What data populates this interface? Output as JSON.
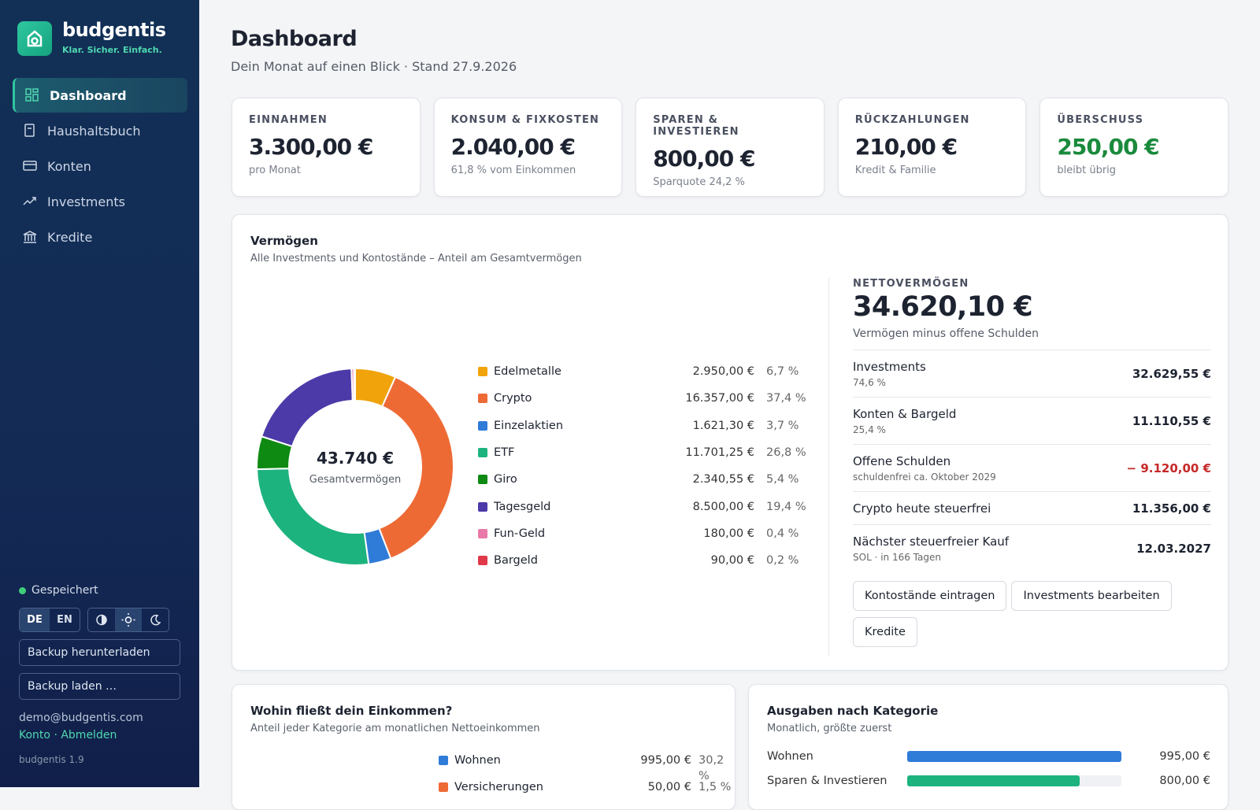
{
  "sidebar": {
    "brand": "budgentis",
    "tagline": "Klar. Sicher. Einfach.",
    "nav": [
      "Dashboard",
      "Haushaltsbuch",
      "Konten",
      "Investments",
      "Kredite"
    ],
    "status": "Gespeichert",
    "languages": [
      "DE",
      "EN"
    ],
    "buttons": [
      "Backup herunterladen",
      "Backup laden …"
    ],
    "email": "demo@budgentis.com",
    "account_links": [
      "Konto",
      "Abmelden"
    ],
    "separator": "·",
    "version": "budgentis 1.9"
  },
  "header": {
    "title": "Dashboard",
    "subtitle": "Dein Monat auf einen Blick · Stand 27.9.2026"
  },
  "kpis": [
    {
      "label": "EINNAHMEN",
      "value": "3.300,00 €",
      "note": "pro Monat"
    },
    {
      "label": "KONSUM & FIXKOSTEN",
      "value": "2.040,00 €",
      "note": "61,8 % vom Einkommen"
    },
    {
      "label": "SPAREN & INVESTIEREN",
      "value": "800,00 €",
      "note": "Sparquote 24,2 %"
    },
    {
      "label": "RÜCKZAHLUNGEN",
      "value": "210,00 €",
      "note": "Kredit & Familie"
    },
    {
      "label": "ÜBERSCHUSS",
      "value": "250,00 €",
      "note": "bleibt übrig",
      "color": "#1a8a3c"
    }
  ],
  "wealth": {
    "title": "Vermögen",
    "subtitle": "Alle Investments und Kontostände – Anteil am Gesamtvermögen",
    "total": "43.740 €",
    "total_label": "Gesamtvermögen",
    "items": [
      {
        "name": "Edelmetalle",
        "color": "#f0a30a",
        "amount": "2.950,00 €",
        "share": 6.7,
        "share_label": "6,7 %"
      },
      {
        "name": "Crypto",
        "color": "#ee6a35",
        "amount": "16.357,00 €",
        "share": 37.4,
        "share_label": "37,4 %"
      },
      {
        "name": "Einzelaktien",
        "color": "#2f7bd8",
        "amount": "1.621,30 €",
        "share": 3.7,
        "share_label": "3,7 %"
      },
      {
        "name": "ETF",
        "color": "#1db37e",
        "amount": "11.701,25 €",
        "share": 26.8,
        "share_label": "26,8 %"
      },
      {
        "name": "Giro",
        "color": "#0e8a12",
        "amount": "2.340,55 €",
        "share": 5.4,
        "share_label": "5,4 %"
      },
      {
        "name": "Tagesgeld",
        "color": "#4b3aa8",
        "amount": "8.500,00 €",
        "share": 19.4,
        "share_label": "19,4 %"
      },
      {
        "name": "Fun-Geld",
        "color": "#e879a8",
        "amount": "180,00 €",
        "share": 0.4,
        "share_label": "0,4 %"
      },
      {
        "name": "Bargeld",
        "color": "#e0394a",
        "amount": "90,00 €",
        "share": 0.2,
        "share_label": "0,2 %"
      }
    ],
    "net": {
      "label": "NETTOVERMÖGEN",
      "value": "34.620,10 €",
      "note": "Vermögen minus offene Schulden",
      "rows": [
        {
          "label": "Investments",
          "note": "74,6 %",
          "value": "32.629,55 €"
        },
        {
          "label": "Konten & Bargeld",
          "note": "25,4 %",
          "value": "11.110,55 €"
        },
        {
          "label": "Offene Schulden",
          "note": "schuldenfrei ca. Oktober 2029",
          "value": "− 9.120,00 €",
          "color": "#c62828"
        },
        {
          "label": "Crypto heute steuerfrei",
          "value": "11.356,00 €"
        },
        {
          "label": "Nächster steuerfreier Kauf",
          "note": "SOL · in 166 Tagen",
          "value": "12.03.2027"
        }
      ],
      "buttons": [
        "Kontostände eintragen",
        "Investments bearbeiten",
        "Kredite"
      ]
    }
  },
  "income": {
    "title": "Wohin fließt dein Einkommen?",
    "subtitle": "Anteil jeder Kategorie am monatlichen Nettoeinkommen",
    "items": [
      {
        "name": "Wohnen",
        "color": "#2f7bd8",
        "amount": "995,00 €",
        "share": 30.2,
        "share_label": "30,2 %"
      },
      {
        "name": "Versicherungen",
        "color": "#ee6a35",
        "amount": "50,00 €",
        "share": 1.5,
        "share_label": "1,5 %"
      }
    ]
  },
  "expenses": {
    "title": "Ausgaben nach Kategorie",
    "subtitle": "Monatlich, größte zuerst",
    "items": [
      {
        "name": "Wohnen",
        "value": 995,
        "value_label": "995,00 €",
        "color": "#2f7bd8"
      },
      {
        "name": "Sparen & Investieren",
        "value": 800,
        "value_label": "800,00 €",
        "color": "#1db37e"
      }
    ]
  }
}
